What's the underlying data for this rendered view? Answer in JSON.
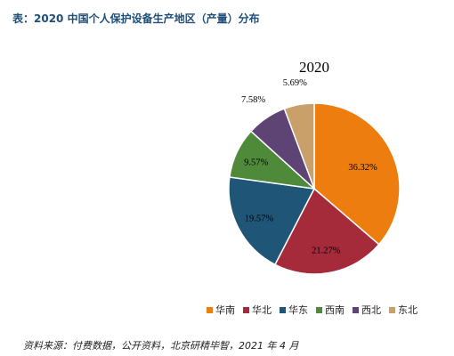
{
  "figure_title": "表：2020 中国个人保护设备生产地区（产量）分布",
  "source_note": "资料来源：付费数据，公开资料，北京研精毕智，2021 年 4 月",
  "chart_data": {
    "type": "pie",
    "title": "2020",
    "categories": [
      "华南",
      "华北",
      "华东",
      "西南",
      "西北",
      "东北"
    ],
    "values": [
      36.32,
      21.27,
      19.57,
      9.57,
      7.58,
      5.69
    ],
    "value_labels": [
      "36.32%",
      "21.27%",
      "19.57%",
      "9.57%",
      "7.58%",
      "5.69%"
    ],
    "colors": [
      "#ED7D0E",
      "#A52A3A",
      "#1F5577",
      "#4E8A3A",
      "#5E4375",
      "#C9A06A"
    ],
    "start_angle_deg": 0,
    "direction": "clockwise",
    "legend_position": "bottom"
  }
}
